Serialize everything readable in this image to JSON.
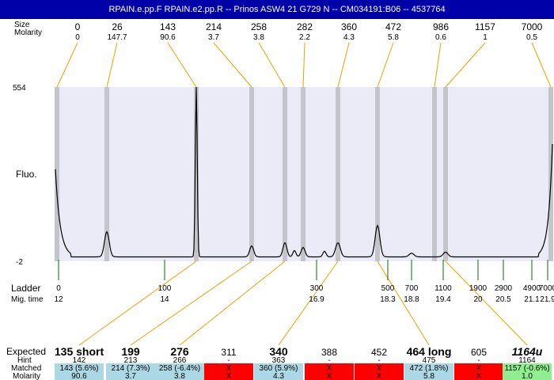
{
  "window": {
    "title": "RPAIN.e.pp.F  RPAIN.e2.pp.R -- Prinos ASW4 21 G729 N -- CM034191:B06 -- 4537764"
  },
  "labels": {
    "size_row": "Size",
    "molarity_row": "Molarity",
    "y_axis": "Fluo.",
    "y_max": "554",
    "y_min": "-2",
    "ladder_row": "Ladder",
    "migtime_row": "Mig. time",
    "expected_row": "Expected",
    "hint_row": "Hint",
    "matched_row": "Matched",
    "molarity_row2": "Molarity"
  },
  "colors": {
    "plot_bg": "#ebebf7",
    "band": "#c4c4cc",
    "connector": "#f0a000",
    "ladder_tick": "#007000",
    "match_ok": "#acd8e6",
    "match_fail": "#ff0000",
    "match_green": "#90ee90",
    "title_bg": "#0000a8"
  },
  "chart_data": {
    "type": "line",
    "ylim": [
      -2,
      554
    ],
    "peaks": [
      {
        "size": "0",
        "molarity": "0"
      },
      {
        "size": "26",
        "molarity": "147.7"
      },
      {
        "size": "143",
        "molarity": "90.6"
      },
      {
        "size": "214",
        "molarity": "3.7"
      },
      {
        "size": "258",
        "molarity": "3.8"
      },
      {
        "size": "282",
        "molarity": "2.2"
      },
      {
        "size": "360",
        "molarity": "4.3"
      },
      {
        "size": "472",
        "molarity": "5.8"
      },
      {
        "size": "986",
        "molarity": "0.6"
      },
      {
        "size": "1157",
        "molarity": "1"
      },
      {
        "size": "7000",
        "molarity": "0.5"
      }
    ],
    "ladder": [
      {
        "size": "0",
        "time": "12"
      },
      {
        "size": "100",
        "time": "14"
      },
      {
        "size": "300",
        "time": "16.9"
      },
      {
        "size": "500",
        "time": "18.3"
      },
      {
        "size": "700",
        "time": "18.8"
      },
      {
        "size": "1100",
        "time": "19.4"
      },
      {
        "size": "1900",
        "time": "20"
      },
      {
        "size": "2900",
        "time": "20.5"
      },
      {
        "size": "4900",
        "time": "21.1"
      },
      {
        "size": "7000",
        "time": "21.9"
      }
    ],
    "expected": [
      {
        "label": "135 short",
        "hint": "142",
        "matched": "143 (5.6%)",
        "molarity": "90.6",
        "status": "ok",
        "bold": true,
        "italic": false
      },
      {
        "label": "199",
        "hint": "213",
        "matched": "214 (7.3%)",
        "molarity": "3.7",
        "status": "ok",
        "bold": true,
        "italic": false
      },
      {
        "label": "276",
        "hint": "266",
        "matched": "258 (-6.4%)",
        "molarity": "3.8",
        "status": "ok",
        "bold": true,
        "italic": false
      },
      {
        "label": "311",
        "hint": "-",
        "matched": "X",
        "molarity": "X",
        "status": "fail",
        "bold": false,
        "italic": false
      },
      {
        "label": "340",
        "hint": "363",
        "matched": "360 (5.9%)",
        "molarity": "4.3",
        "status": "ok",
        "bold": true,
        "italic": false
      },
      {
        "label": "388",
        "hint": "-",
        "matched": "X",
        "molarity": "X",
        "status": "fail",
        "bold": false,
        "italic": false
      },
      {
        "label": "452",
        "hint": "-",
        "matched": "X",
        "molarity": "X",
        "status": "fail",
        "bold": false,
        "italic": false
      },
      {
        "label": "464 long",
        "hint": "475",
        "matched": "472 (1.8%)",
        "molarity": "5.8",
        "status": "ok",
        "bold": true,
        "italic": false
      },
      {
        "label": "605",
        "hint": "-",
        "matched": "X",
        "molarity": "X",
        "status": "fail",
        "bold": false,
        "italic": false
      },
      {
        "label": "1164u",
        "hint": "1164",
        "matched": "1157 (-0.6%)",
        "molarity": "1.0",
        "status": "green",
        "bold": true,
        "italic": true
      }
    ]
  }
}
